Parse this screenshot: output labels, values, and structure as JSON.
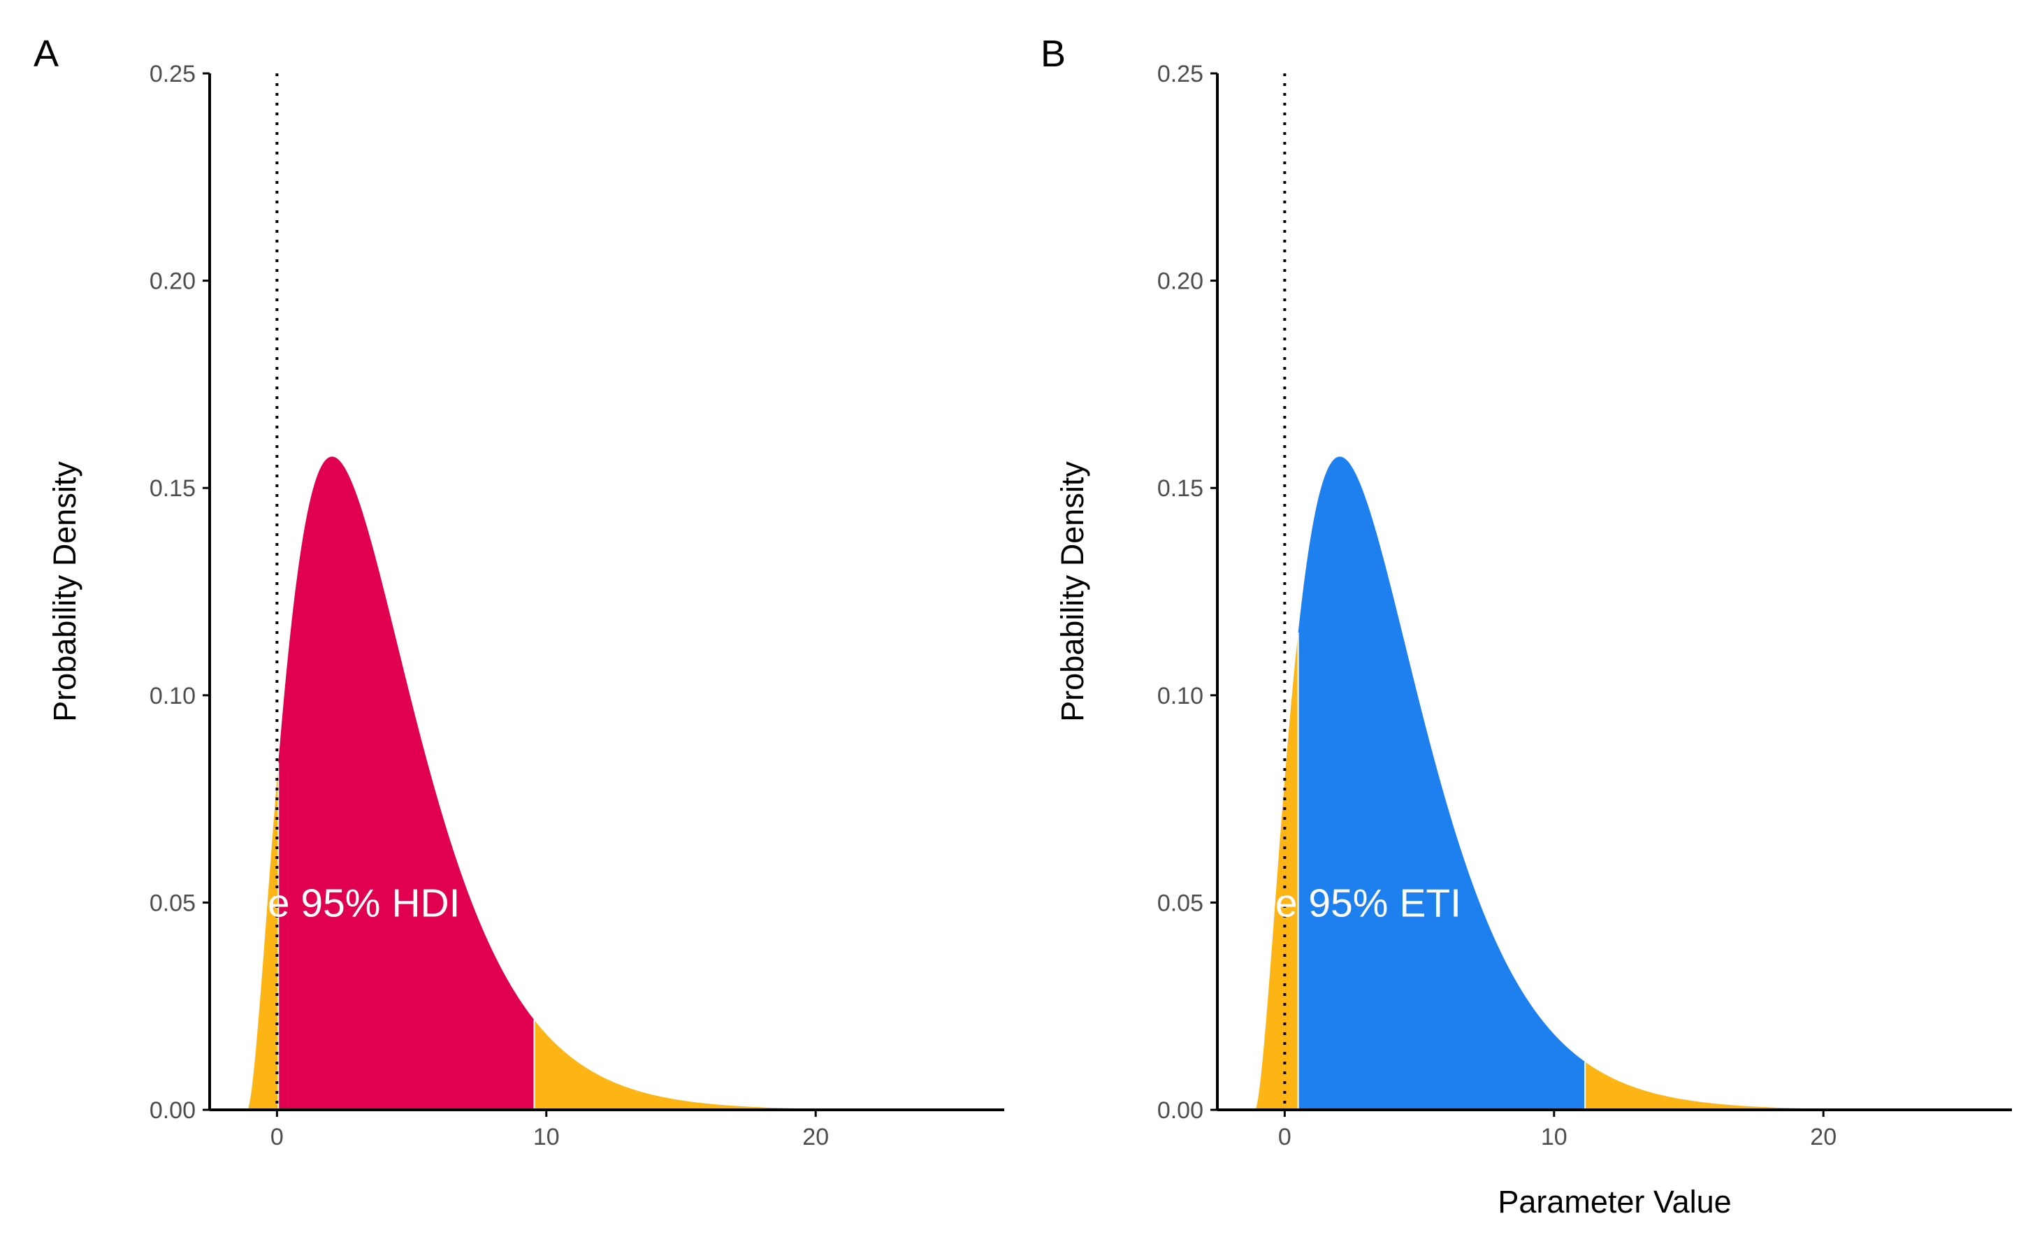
{
  "chart_data": [
    {
      "panel": "A",
      "type": "area",
      "distribution": "gamma",
      "shape": 2.7,
      "scale": 1.85,
      "shift": -1.1,
      "xlim": [
        -2.5,
        27
      ],
      "ylim": [
        0,
        0.25
      ],
      "xticks": [
        0,
        10,
        20
      ],
      "yticks": [
        0,
        0.05,
        0.1,
        0.15,
        0.2,
        0.25
      ],
      "xtick_labels": [
        "0",
        "10",
        "20"
      ],
      "ytick_labels": [
        "0.00",
        "0.05",
        "0.10",
        "0.15",
        "0.20",
        "0.25"
      ],
      "xlabel": "",
      "ylabel": "Probability Density",
      "reference_line_x": 0,
      "interval": {
        "name": "95% HDI",
        "lower": 0.05,
        "upper": 9.55
      },
      "interval_label": "e 95% HDI",
      "interval_label_x": -0.35,
      "interval_label_y": 0.05,
      "interval_color": "#e0004f",
      "tail_color": "#fdb515"
    },
    {
      "panel": "B",
      "type": "area",
      "distribution": "gamma",
      "shape": 2.7,
      "scale": 1.85,
      "shift": -1.1,
      "xlim": [
        -2.5,
        27
      ],
      "ylim": [
        0,
        0.25
      ],
      "xticks": [
        0,
        10,
        20
      ],
      "yticks": [
        0,
        0.05,
        0.1,
        0.15,
        0.2,
        0.25
      ],
      "xtick_labels": [
        "0",
        "10",
        "20"
      ],
      "ytick_labels": [
        "0.00",
        "0.05",
        "0.10",
        "0.15",
        "0.20",
        "0.25"
      ],
      "xlabel": "Parameter Value",
      "ylabel": "Probability Density",
      "reference_line_x": 0,
      "interval": {
        "name": "95% ETI",
        "lower": 0.5,
        "upper": 11.15
      },
      "interval_label": "e 95% ETI",
      "interval_label_x": -0.35,
      "interval_label_y": 0.05,
      "interval_color": "#1e7fee",
      "tail_color": "#fdb515"
    }
  ]
}
